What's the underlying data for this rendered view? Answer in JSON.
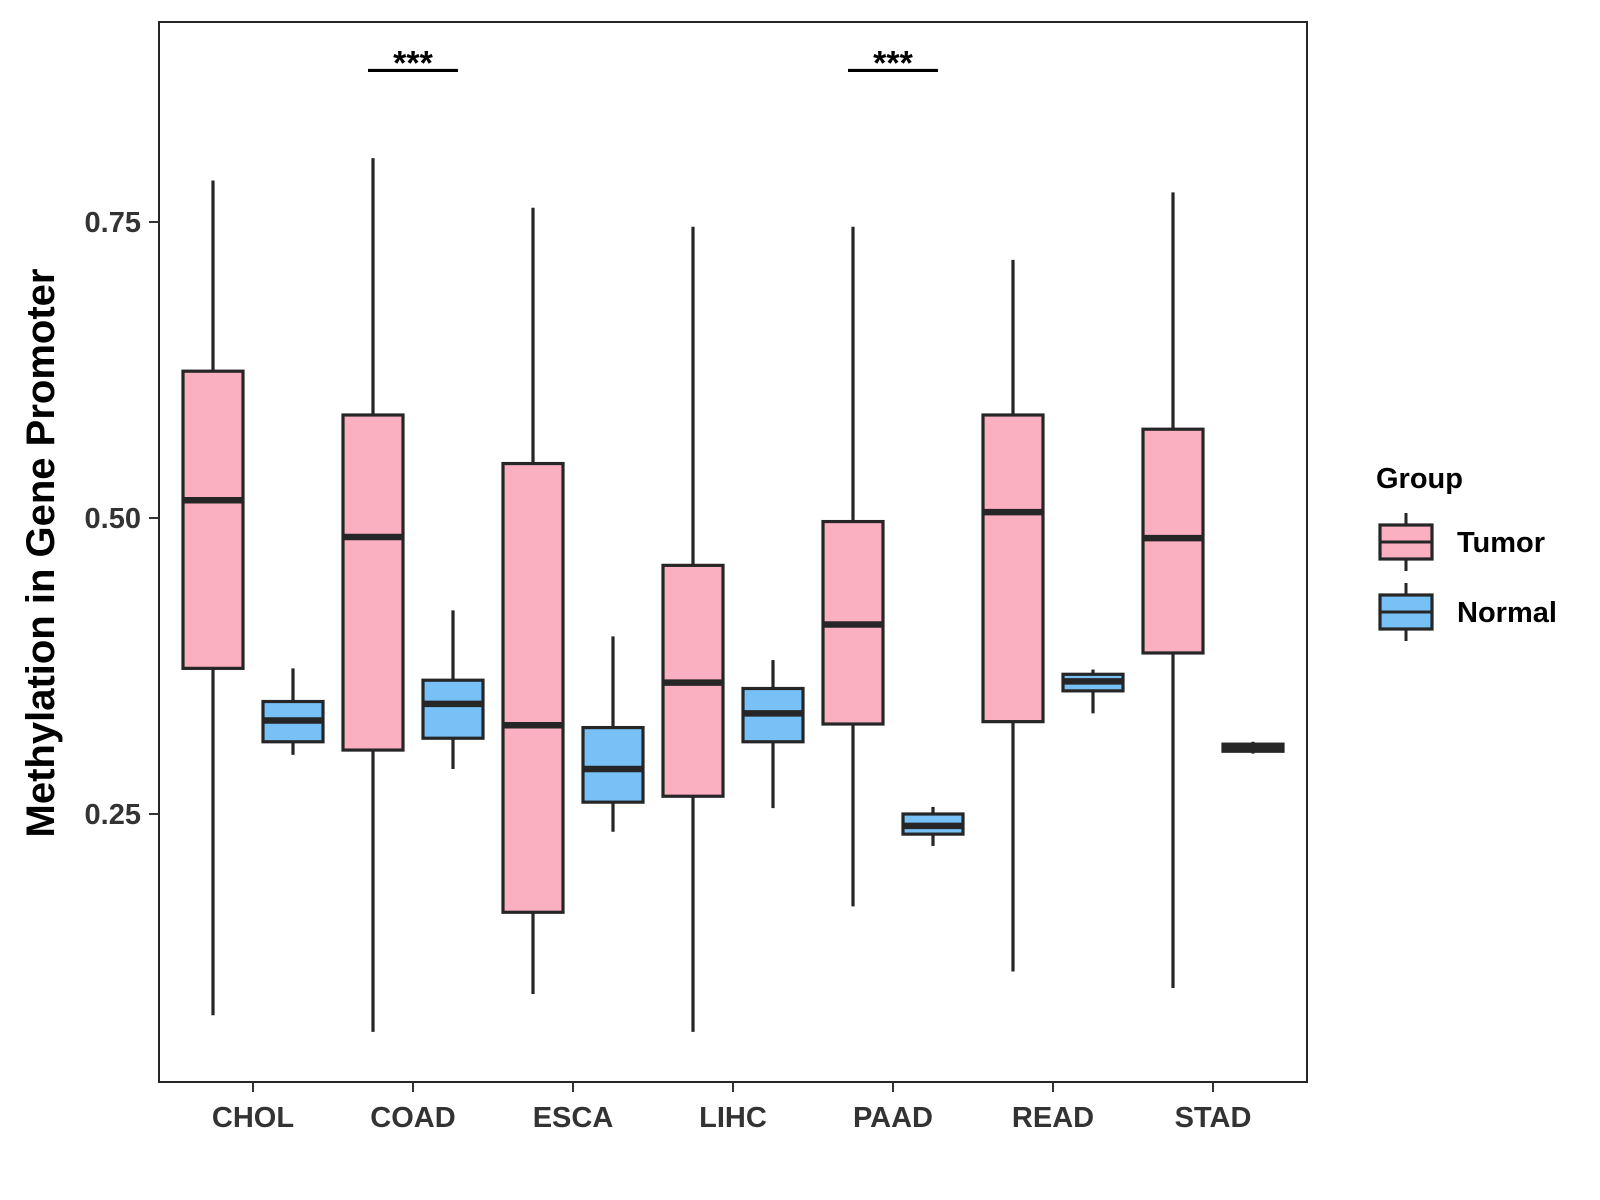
{
  "chart_data": {
    "type": "boxplot",
    "title": "",
    "xlabel": "",
    "ylabel": "Methylation in Gene Promoter",
    "ylim": [
      0.025,
      0.92
    ],
    "yticks": [
      0.25,
      0.5,
      0.75
    ],
    "ytick_labels": [
      "0.25",
      "0.50",
      "0.75"
    ],
    "grid": false,
    "legend_position": "right",
    "categories": [
      "CHOL",
      "COAD",
      "ESCA",
      "LIHC",
      "PAAD",
      "READ",
      "STAD"
    ],
    "legend": {
      "title": "Group",
      "entries": [
        "Tumor",
        "Normal"
      ]
    },
    "colors": {
      "Tumor": "#FBB0C2",
      "Normal": "#77C1F7",
      "stroke": "#262626"
    },
    "series": [
      {
        "name": "Tumor",
        "boxes": [
          {
            "category": "CHOL",
            "whisker_low": 0.08,
            "q1": 0.373,
            "median": 0.515,
            "q3": 0.624,
            "whisker_high": 0.785
          },
          {
            "category": "COAD",
            "whisker_low": 0.066,
            "q1": 0.304,
            "median": 0.484,
            "q3": 0.587,
            "whisker_high": 0.804
          },
          {
            "category": "ESCA",
            "whisker_low": 0.098,
            "q1": 0.167,
            "median": 0.325,
            "q3": 0.546,
            "whisker_high": 0.762
          },
          {
            "category": "LIHC",
            "whisker_low": 0.066,
            "q1": 0.265,
            "median": 0.361,
            "q3": 0.46,
            "whisker_high": 0.746
          },
          {
            "category": "PAAD",
            "whisker_low": 0.172,
            "q1": 0.326,
            "median": 0.41,
            "q3": 0.497,
            "whisker_high": 0.746
          },
          {
            "category": "READ",
            "whisker_low": 0.117,
            "q1": 0.328,
            "median": 0.505,
            "q3": 0.587,
            "whisker_high": 0.718
          },
          {
            "category": "STAD",
            "whisker_low": 0.103,
            "q1": 0.386,
            "median": 0.483,
            "q3": 0.575,
            "whisker_high": 0.775
          }
        ]
      },
      {
        "name": "Normal",
        "boxes": [
          {
            "category": "CHOL",
            "whisker_low": 0.3,
            "q1": 0.311,
            "median": 0.329,
            "q3": 0.345,
            "whisker_high": 0.373
          },
          {
            "category": "COAD",
            "whisker_low": 0.288,
            "q1": 0.314,
            "median": 0.343,
            "q3": 0.363,
            "whisker_high": 0.422
          },
          {
            "category": "ESCA",
            "whisker_low": 0.235,
            "q1": 0.26,
            "median": 0.288,
            "q3": 0.323,
            "whisker_high": 0.4
          },
          {
            "category": "LIHC",
            "whisker_low": 0.255,
            "q1": 0.311,
            "median": 0.335,
            "q3": 0.356,
            "whisker_high": 0.38
          },
          {
            "category": "PAAD",
            "whisker_low": 0.223,
            "q1": 0.233,
            "median": 0.24,
            "q3": 0.25,
            "whisker_high": 0.256
          },
          {
            "category": "READ",
            "whisker_low": 0.335,
            "q1": 0.354,
            "median": 0.362,
            "q3": 0.368,
            "whisker_high": 0.372
          },
          {
            "category": "STAD",
            "whisker_low": 0.301,
            "q1": 0.303,
            "median": 0.306,
            "q3": 0.309,
            "whisker_high": 0.311
          }
        ]
      }
    ],
    "annotations": [
      {
        "category": "COAD",
        "text": "***",
        "y": 0.878
      },
      {
        "category": "PAAD",
        "text": "***",
        "y": 0.878
      }
    ]
  }
}
